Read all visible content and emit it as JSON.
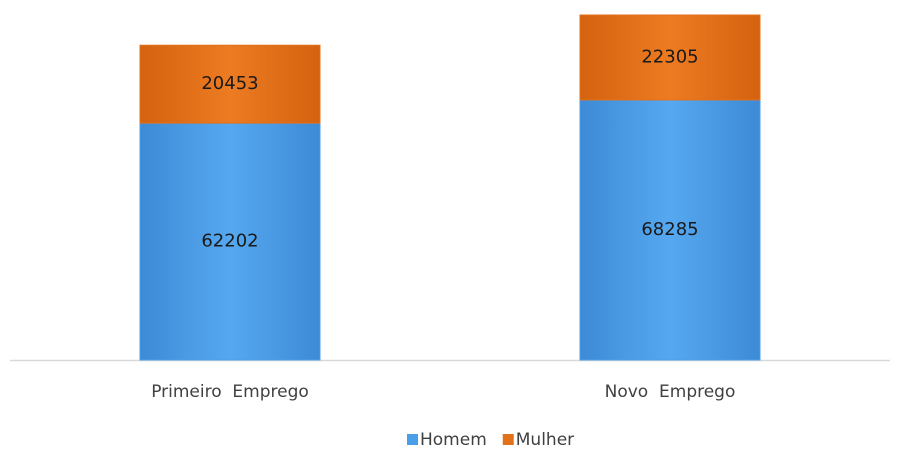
{
  "chart_data": {
    "type": "stacked_bar",
    "categories": [
      "Primeiro  Emprego",
      "Novo  Emprego"
    ],
    "series": [
      {
        "name": "Homem",
        "color": "#4b9fe8",
        "values": [
          62202,
          68285
        ]
      },
      {
        "name": "Mulher",
        "color": "#e2711b",
        "values": [
          20453,
          22305
        ]
      }
    ],
    "legend": "bottom"
  }
}
